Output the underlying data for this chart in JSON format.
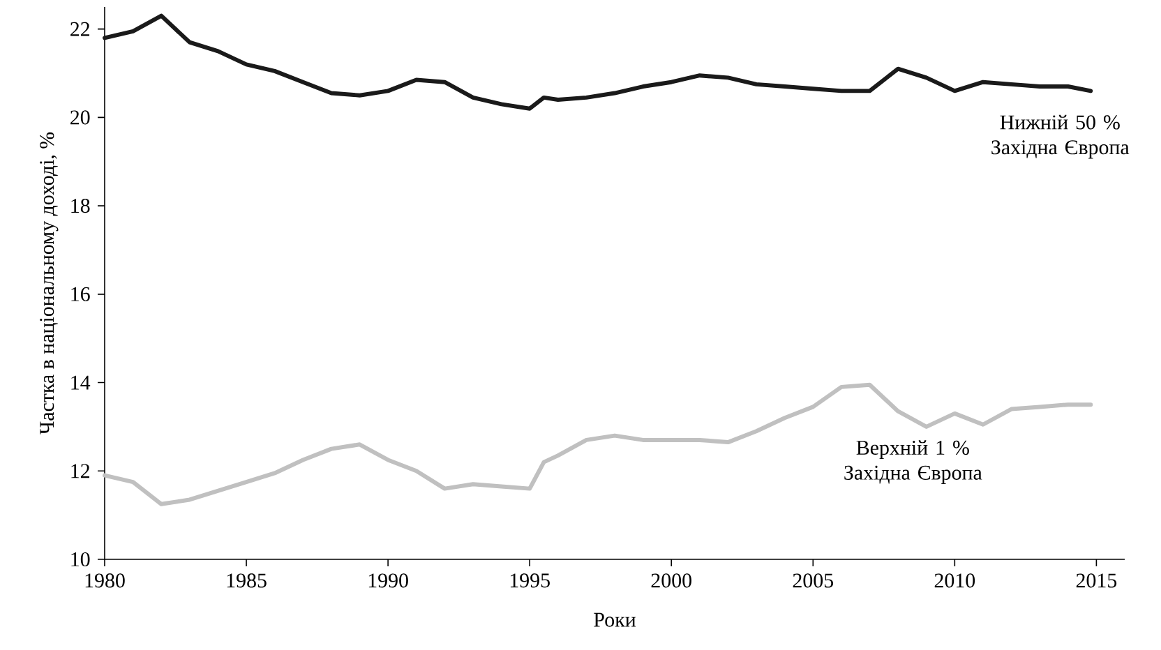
{
  "chart_data": {
    "type": "line",
    "xlabel": "Роки",
    "ylabel": "Частка в національному доході, %",
    "xlim": [
      1980,
      2016
    ],
    "ylim": [
      10,
      22.5
    ],
    "xticks": [
      1980,
      1985,
      1990,
      1995,
      2000,
      2005,
      2010,
      2015
    ],
    "yticks": [
      10,
      12,
      14,
      16,
      18,
      20,
      22
    ],
    "grid": false,
    "legend": false,
    "marker": "none",
    "line_style": "solid",
    "series": [
      {
        "name": "Нижній 50 % Західна Європа",
        "color": "#1a1a1a",
        "x": [
          1980,
          1981,
          1982,
          1983,
          1984,
          1985,
          1986,
          1987,
          1988,
          1989,
          1990,
          1991,
          1992,
          1993,
          1994,
          1995,
          1995.5,
          1996,
          1997,
          1998,
          1999,
          2000,
          2001,
          2002,
          2003,
          2004,
          2005,
          2006,
          2007,
          2008,
          2009,
          2010,
          2011,
          2012,
          2013,
          2014,
          2014.8
        ],
        "values": [
          21.8,
          21.95,
          22.3,
          21.7,
          21.5,
          21.2,
          21.05,
          20.8,
          20.55,
          20.5,
          20.6,
          20.85,
          20.8,
          20.45,
          20.3,
          20.2,
          20.45,
          20.4,
          20.45,
          20.55,
          20.7,
          20.8,
          20.95,
          20.9,
          20.75,
          20.7,
          20.65,
          20.6,
          20.6,
          21.1,
          20.9,
          20.6,
          20.8,
          20.75,
          20.7,
          20.7,
          20.6
        ]
      },
      {
        "name": "Верхній 1 % Західна Європа",
        "color": "#c0c0c0",
        "x": [
          1980,
          1981,
          1982,
          1983,
          1984,
          1985,
          1986,
          1987,
          1988,
          1989,
          1990,
          1991,
          1992,
          1993,
          1994,
          1995,
          1995.5,
          1996,
          1997,
          1998,
          1999,
          2000,
          2001,
          2002,
          2003,
          2004,
          2005,
          2006,
          2007,
          2008,
          2009,
          2010,
          2011,
          2012,
          2013,
          2014,
          2014.8
        ],
        "values": [
          11.9,
          11.75,
          11.25,
          11.35,
          11.55,
          11.75,
          11.95,
          12.25,
          12.5,
          12.6,
          12.25,
          12.0,
          11.6,
          11.7,
          11.65,
          11.6,
          12.2,
          12.35,
          12.7,
          12.8,
          12.7,
          12.7,
          12.7,
          12.65,
          12.9,
          13.2,
          13.45,
          13.9,
          13.95,
          13.35,
          13.0,
          13.3,
          13.05,
          13.4,
          13.45,
          13.5,
          13.5
        ]
      }
    ]
  }
}
